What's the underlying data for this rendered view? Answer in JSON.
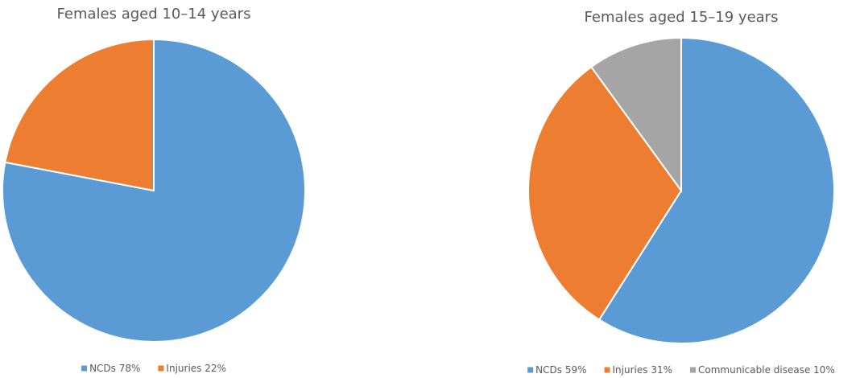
{
  "chart_data": [
    {
      "type": "pie",
      "title": "Females aged 10–14 years",
      "categories": [
        "NCDs",
        "Injuries"
      ],
      "values": [
        78,
        22
      ],
      "value_labels": [
        "78%",
        "22%"
      ],
      "colors": [
        "#5b9bd5",
        "#ed7d31"
      ],
      "legend": "bottom"
    },
    {
      "type": "pie",
      "title": "Females aged 15–19 years",
      "categories": [
        "NCDs",
        "Injuries",
        "Communicable disease"
      ],
      "values": [
        59,
        31,
        10
      ],
      "value_labels": [
        "59%",
        "31%",
        "10%"
      ],
      "colors": [
        "#5b9bd5",
        "#ed7d31",
        "#a5a5a5"
      ],
      "legend": "bottom"
    }
  ]
}
